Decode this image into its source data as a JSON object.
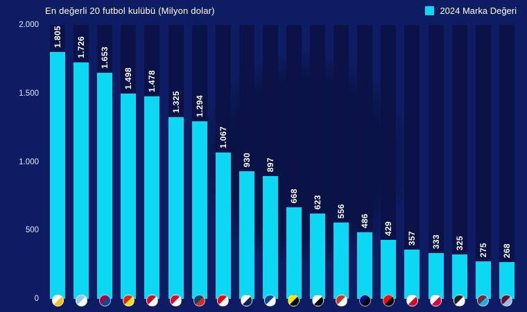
{
  "header": {
    "title": "En değerli 20 futbol kulübü (Milyon dolar)",
    "legend_label": "2024 Marka Değeri"
  },
  "colors": {
    "background": "#0e1d63",
    "track": "#0a1247",
    "bar": "#0cd8f4",
    "text": "#ffffff",
    "axis_text": "#e4e8ff"
  },
  "chart_data": {
    "type": "bar",
    "title": "En değerli 20 futbol kulübü (Milyon dolar)",
    "legend": "2024 Marka Değeri",
    "legend_position": "top-right",
    "grid": false,
    "ylim": [
      0,
      2000
    ],
    "ytick_labels": [
      "0",
      "500",
      "1.000",
      "1.500",
      "2.000"
    ],
    "ytick_values": [
      0,
      500,
      1000,
      1500,
      2000
    ],
    "unit": "Milyon dolar",
    "categories": [
      "Real Madrid",
      "Manchester City",
      "Barcelona",
      "Manchester United",
      "Liverpool",
      "Bayern Münih",
      "Paris Saint-Germain",
      "Arsenal",
      "Tottenham Hotspur",
      "Chelsea",
      "Borussia Dortmund",
      "Juventus",
      "Atletico Madrid",
      "Inter",
      "Milan",
      "Sevilla",
      "RB Leipzig",
      "Newcastle United",
      "West Ham United",
      "Aston Villa"
    ],
    "values": [
      1805,
      1726,
      1653,
      1498,
      1478,
      1325,
      1294,
      1067,
      930,
      897,
      668,
      623,
      556,
      486,
      429,
      357,
      333,
      325,
      275,
      268
    ],
    "value_labels": [
      "1.805",
      "1.726",
      "1.653",
      "1.498",
      "1.478",
      "1.325",
      "1.294",
      "1.067",
      "930",
      "897",
      "668",
      "623",
      "556",
      "486",
      "429",
      "357",
      "333",
      "325",
      "275",
      "268"
    ],
    "logo_colors": [
      [
        "#ffffff",
        "#fdbe11"
      ],
      [
        "#98c5e9",
        "#ffffff"
      ],
      [
        "#a50044",
        "#004d98"
      ],
      [
        "#da291c",
        "#fbe122"
      ],
      [
        "#c8102e",
        "#ffffff"
      ],
      [
        "#dc052d",
        "#ffffff"
      ],
      [
        "#004170",
        "#da291c"
      ],
      [
        "#ef0107",
        "#ffffff"
      ],
      [
        "#ffffff",
        "#132257"
      ],
      [
        "#034694",
        "#ffffff"
      ],
      [
        "#fde100",
        "#000000"
      ],
      [
        "#ffffff",
        "#000000"
      ],
      [
        "#cb3524",
        "#ffffff"
      ],
      [
        "#010e80",
        "#000000"
      ],
      [
        "#fb090b",
        "#000000"
      ],
      [
        "#ffffff",
        "#d8091f"
      ],
      [
        "#ffffff",
        "#dd013f"
      ],
      [
        "#241f20",
        "#ffffff"
      ],
      [
        "#7a263a",
        "#1bb1e7"
      ],
      [
        "#670e36",
        "#95bfe5"
      ]
    ]
  }
}
